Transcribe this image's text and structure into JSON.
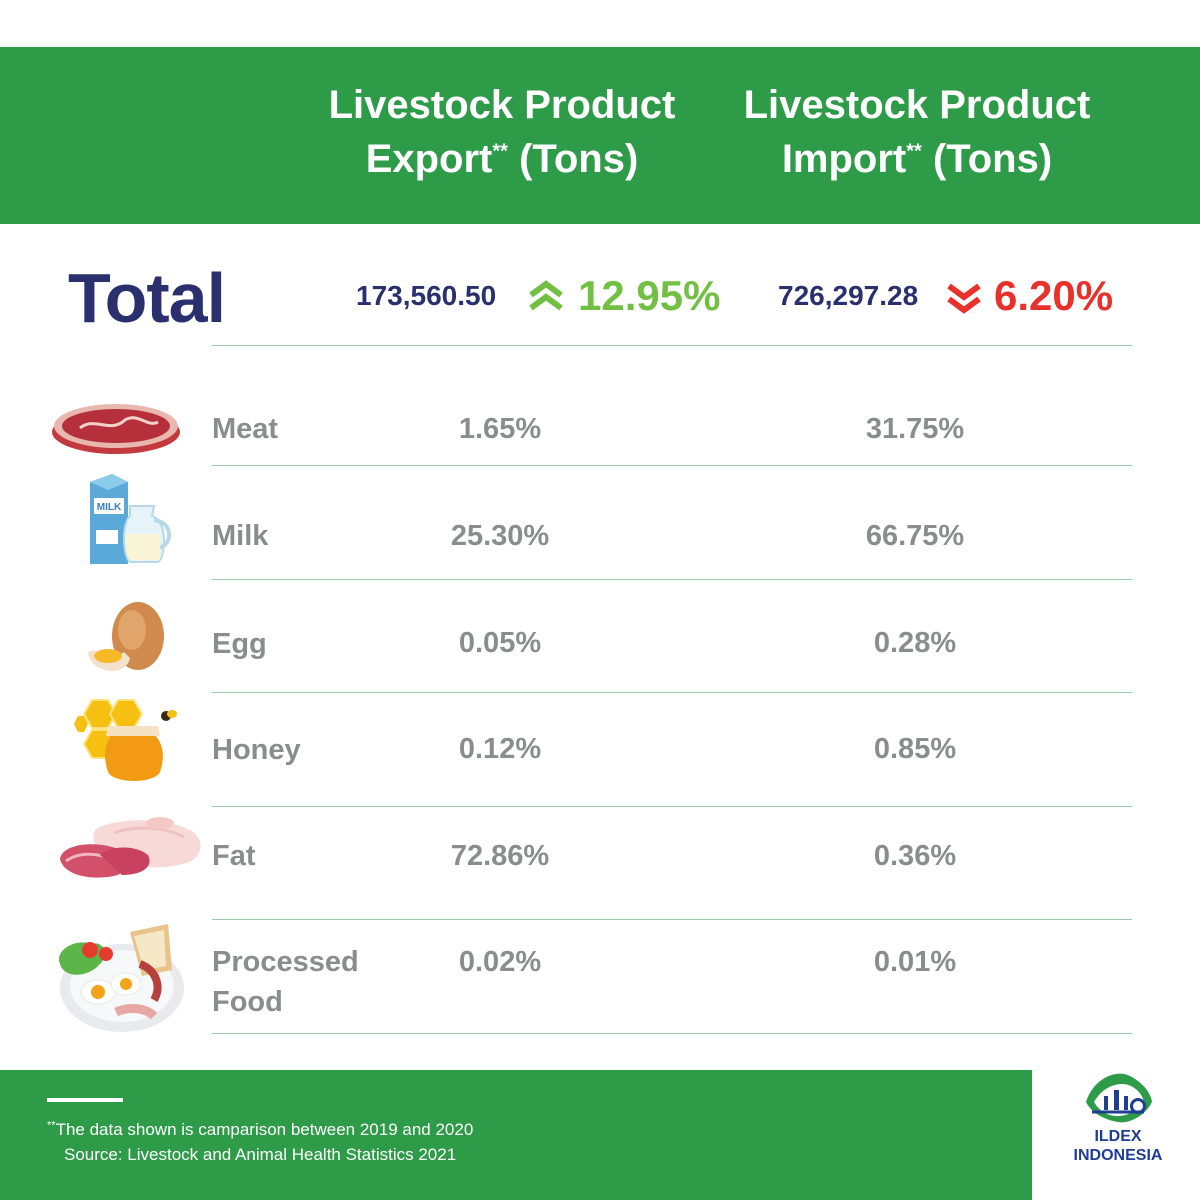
{
  "header": {
    "export_line1": "Livestock Product",
    "export_line2": "Export",
    "import_line1": "Livestock Product",
    "import_line2": "Import",
    "stars": "**",
    "unit": "(Tons)"
  },
  "total": {
    "label": "Total",
    "export_value": "173,560.50",
    "export_change": "12.95%",
    "export_direction": "up",
    "import_value": "726,297.28",
    "import_change": "6.20%",
    "import_direction": "down"
  },
  "rows": [
    {
      "icon": "meat-icon",
      "label": "Meat",
      "export": "1.65%",
      "import": "31.75%"
    },
    {
      "icon": "milk-icon",
      "label": "Milk",
      "export": "25.30%",
      "import": "66.75%",
      "icon_text": "MILK"
    },
    {
      "icon": "egg-icon",
      "label": "Egg",
      "export": "0.05%",
      "import": "0.28%"
    },
    {
      "icon": "honey-icon",
      "label": "Honey",
      "export": "0.12%",
      "import": "0.85%"
    },
    {
      "icon": "fat-icon",
      "label": "Fat",
      "export": "72.86%",
      "import": "0.36%"
    },
    {
      "icon": "processed-food-icon",
      "label_line1": "Processed",
      "label_line2": "Food",
      "export": "0.02%",
      "import": "0.01%"
    }
  ],
  "footer": {
    "stars": "**",
    "note": "The data shown is camparison between 2019 and 2020",
    "source": "Source: Livestock and Animal Health Statistics 2021"
  },
  "logo": {
    "line1": "ILDEX",
    "line2": "INDONESIA"
  },
  "colors": {
    "brand_green": "#2d9b48",
    "navy": "#2a2f6e",
    "up_green": "#72c043",
    "down_red": "#e8312a",
    "label_gray": "#8a8c8e"
  }
}
